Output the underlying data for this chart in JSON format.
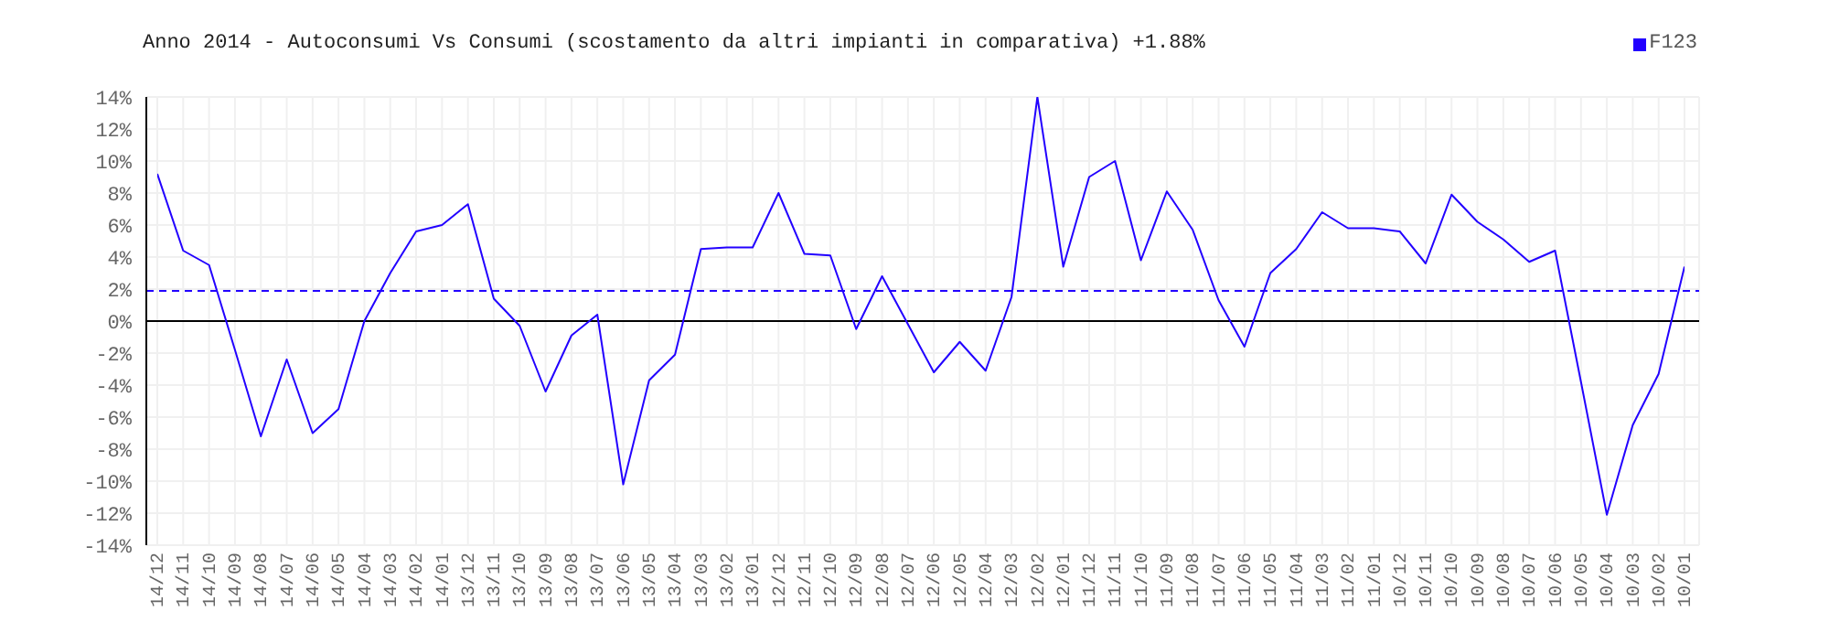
{
  "chart_data": {
    "type": "line",
    "title": "Anno 2014 - Autoconsumi Vs Consumi (scostamento da altri impianti in comparativa) +1.88%",
    "categories": [
      "14/12",
      "14/11",
      "14/10",
      "14/09",
      "14/08",
      "14/07",
      "14/06",
      "14/05",
      "14/04",
      "14/03",
      "14/02",
      "14/01",
      "13/12",
      "13/11",
      "13/10",
      "13/09",
      "13/08",
      "13/07",
      "13/06",
      "13/05",
      "13/04",
      "13/03",
      "13/02",
      "13/01",
      "12/12",
      "12/11",
      "12/10",
      "12/09",
      "12/08",
      "12/07",
      "12/06",
      "12/05",
      "12/04",
      "12/03",
      "12/02",
      "12/01",
      "11/12",
      "11/11",
      "11/10",
      "11/09",
      "11/08",
      "11/07",
      "11/06",
      "11/05",
      "11/04",
      "11/03",
      "11/02",
      "11/01",
      "10/12",
      "10/11",
      "10/10",
      "10/09",
      "10/08",
      "10/07",
      "10/06",
      "10/05",
      "10/04",
      "10/03",
      "10/02",
      "10/01"
    ],
    "series": [
      {
        "name": "F123",
        "color": "#2200ff",
        "values": [
          9.2,
          4.4,
          3.5,
          -1.8,
          -7.2,
          -2.4,
          -7.0,
          -5.5,
          0.0,
          3.0,
          5.6,
          6.0,
          7.3,
          1.4,
          -0.3,
          -4.4,
          -0.9,
          0.4,
          -10.2,
          -3.7,
          -2.1,
          4.5,
          4.6,
          4.6,
          8.0,
          4.2,
          4.1,
          -0.5,
          2.8,
          -0.2,
          -3.2,
          -1.3,
          -3.1,
          1.5,
          14.0,
          3.4,
          9.0,
          10.0,
          3.8,
          8.1,
          5.7,
          1.3,
          -1.6,
          3.0,
          4.5,
          6.8,
          5.8,
          5.8,
          5.6,
          3.6,
          7.9,
          6.2,
          5.1,
          3.7,
          4.4,
          -3.8,
          -12.1,
          -6.5,
          -3.3,
          3.4
        ]
      }
    ],
    "ylim": [
      -14,
      14
    ],
    "yticks": [
      {
        "value": -14,
        "label": "-14%"
      },
      {
        "value": -12,
        "label": "-12%"
      },
      {
        "value": -10,
        "label": "-10%"
      },
      {
        "value": -8,
        "label": "-8%"
      },
      {
        "value": -6,
        "label": "-6%"
      },
      {
        "value": -4,
        "label": "-4%"
      },
      {
        "value": -2,
        "label": "-2%"
      },
      {
        "value": 0,
        "label": "0%"
      },
      {
        "value": 2,
        "label": "2%"
      },
      {
        "value": 4,
        "label": "4%"
      },
      {
        "value": 6,
        "label": "6%"
      },
      {
        "value": 8,
        "label": "8%"
      },
      {
        "value": 10,
        "label": "10%"
      },
      {
        "value": 12,
        "label": "12%"
      },
      {
        "value": 14,
        "label": "14%"
      }
    ],
    "ref_lines": [
      {
        "axis": "y",
        "value": 1.88,
        "color": "#2200ff",
        "line_style": "dashed"
      },
      {
        "axis": "y",
        "value": 0,
        "color": "#000000",
        "line_style": "solid"
      }
    ],
    "grid": true,
    "legend": "top right",
    "marker": "none",
    "line_style": "solid"
  }
}
